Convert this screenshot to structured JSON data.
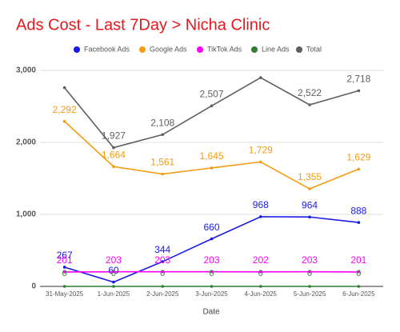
{
  "chart_data": {
    "type": "line",
    "title": "Ads Cost - Last 7Day > Nicha Clinic",
    "x_label": "Date",
    "categories": [
      "31-May-2025",
      "1-Jun-2025",
      "2-Jun-2025",
      "3-Jun-2025",
      "4-Jun-2025",
      "5-Jun-2025",
      "6-Jun-2025"
    ],
    "series": [
      {
        "name": "Facebook Ads",
        "color": "#1a1ae6",
        "values": [
          267,
          60,
          344,
          660,
          968,
          964,
          888
        ]
      },
      {
        "name": "Google Ads",
        "color": "#f39c12",
        "values": [
          2292,
          1664,
          1561,
          1645,
          1729,
          1355,
          1629
        ],
        "value_labels": [
          "2,292",
          "1,664",
          "1,561",
          "1,645",
          "1,729",
          "1,355",
          "1,629"
        ]
      },
      {
        "name": "TikTok Ads",
        "color": "#ff00ff",
        "values": [
          201,
          203,
          203,
          203,
          202,
          203,
          201
        ]
      },
      {
        "name": "Line Ads",
        "color": "#2e7d32",
        "values": [
          0,
          0,
          0,
          0,
          0,
          0,
          0
        ]
      },
      {
        "name": "Total",
        "color": "#5f5f5f",
        "values": [
          2760,
          1927,
          2108,
          2507,
          2899,
          2522,
          2718
        ],
        "value_labels": [
          null,
          "1,927",
          "2,108",
          "2,507",
          null,
          "2,522",
          "2,718"
        ]
      }
    ],
    "ylim": [
      0,
      3000
    ],
    "yticks": [
      0,
      {
        "value": 1000,
        "label": "1,000"
      },
      {
        "value": 2000,
        "label": "2,000"
      },
      {
        "value": 3000,
        "label": "3,000"
      }
    ],
    "grid": true,
    "legend": "top"
  }
}
